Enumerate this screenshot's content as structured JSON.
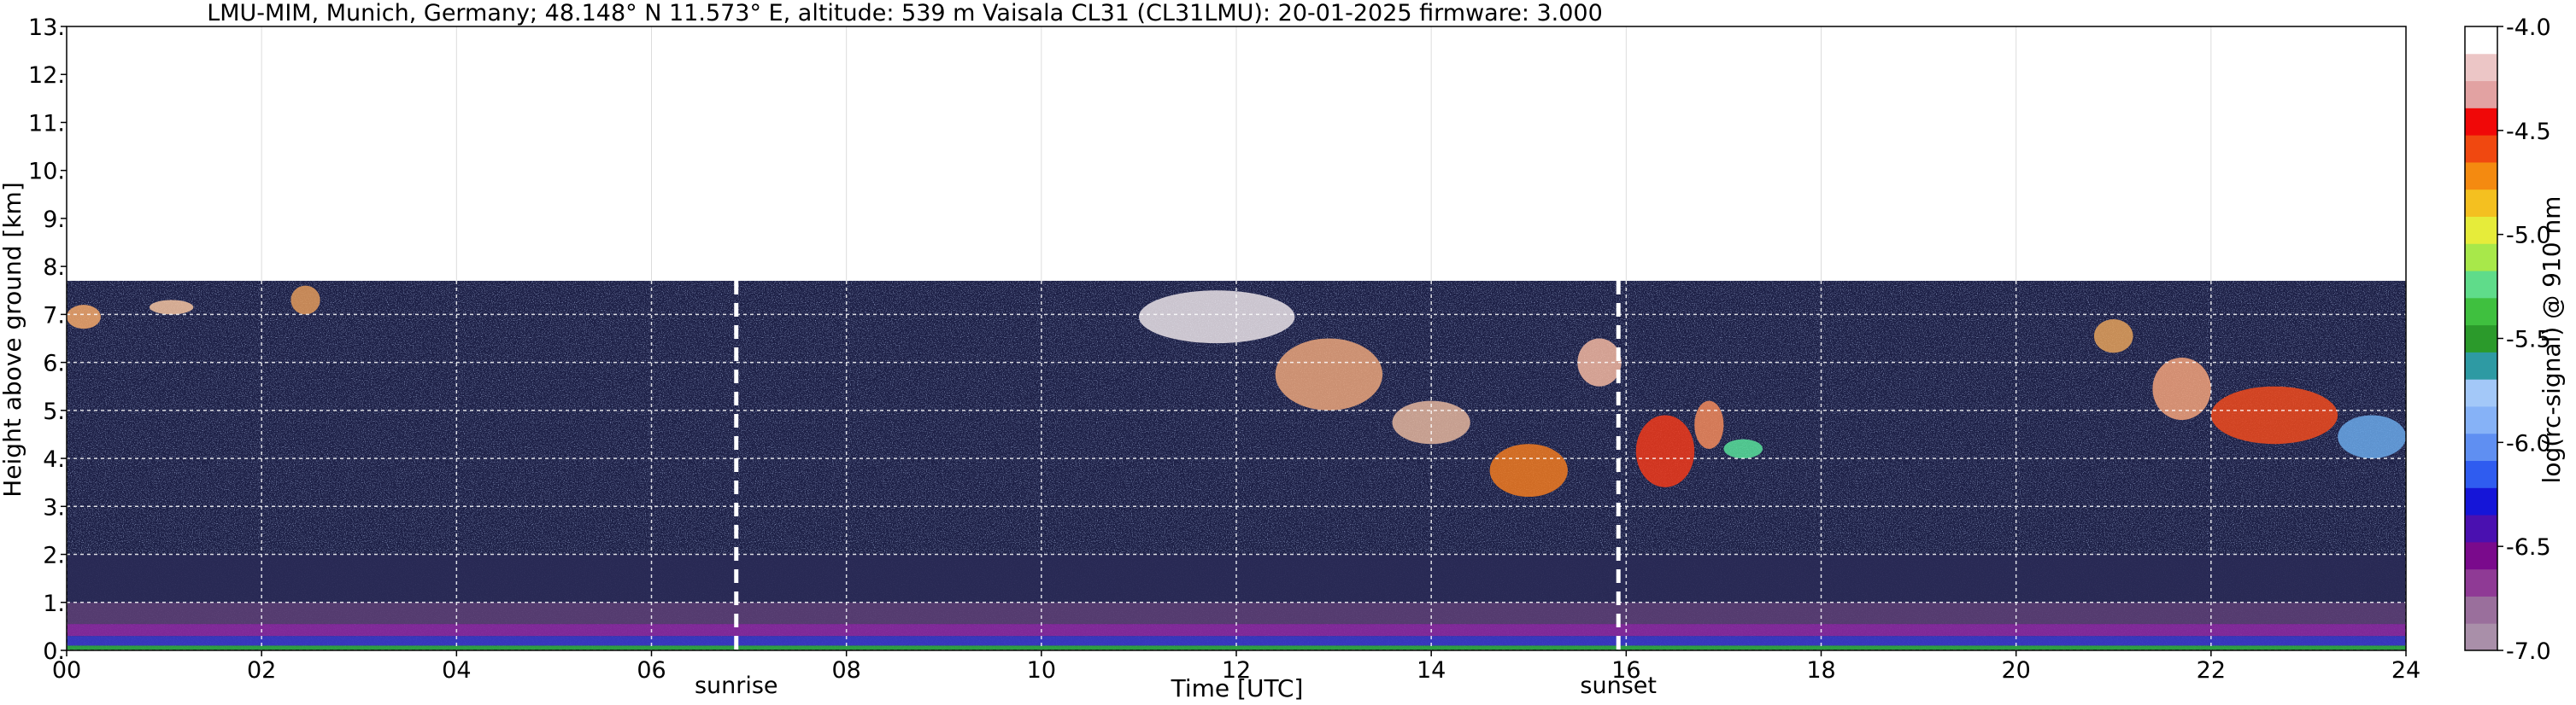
{
  "chart_data": {
    "type": "heatmap",
    "title": "LMU-MIM, Munich, Germany; 48.148° N 11.573° E, altitude: 539 m    Vaisala CL31 (CL31LMU): 20-01-2025    firmware: 3.000",
    "xlabel": "Time [UTC]",
    "ylabel": "Height above ground [km]",
    "colorbar_label": "log(rc-signal) @ 910 nm",
    "xlim": [
      0,
      24
    ],
    "ylim": [
      0,
      13
    ],
    "x_ticks": [
      0,
      2,
      4,
      6,
      8,
      10,
      12,
      14,
      16,
      18,
      20,
      22,
      24
    ],
    "x_tick_labels": [
      "00",
      "02",
      "04",
      "06",
      "08",
      "10",
      "12",
      "14",
      "16",
      "18",
      "20",
      "22",
      "24"
    ],
    "y_ticks": [
      0,
      1,
      2,
      3,
      4,
      5,
      6,
      7,
      8,
      9,
      10,
      11,
      12,
      13
    ],
    "y_tick_labels": [
      "0.",
      "1.",
      "2.",
      "3.",
      "4.",
      "5.",
      "6.",
      "7.",
      "8.",
      "9.",
      "10.",
      "11.",
      "12.",
      "13."
    ],
    "colorbar_range": [
      -7.0,
      -4.0
    ],
    "colorbar_ticks": [
      -7.0,
      -6.5,
      -6.0,
      -5.5,
      -5.0,
      -4.5,
      -4.0
    ],
    "colorbar_tick_labels": [
      "-7.0",
      "-6.5",
      "-6.0",
      "-5.5",
      "-5.0",
      "-4.5",
      "-4.0"
    ],
    "colorbar_colors": [
      "#a98fa9",
      "#9a6f9c",
      "#8f3a95",
      "#7a0a8c",
      "#4a10b0",
      "#1515d8",
      "#2f5cf0",
      "#5f8ff2",
      "#86b2f7",
      "#a3c8f8",
      "#2e9aa3",
      "#2b9a2b",
      "#3fc03f",
      "#5fdc8a",
      "#a8e84a",
      "#e6ec3a",
      "#f4c020",
      "#f48a10",
      "#f04810",
      "#f00808",
      "#e2a2a2",
      "#ecc6c6",
      "#ffffff"
    ],
    "data_top_km": 7.7,
    "data_color": "#1c1f45",
    "grid": true,
    "events": [
      {
        "label": "sunrise",
        "time_h": 6.87
      },
      {
        "label": "sunset",
        "time_h": 15.92
      }
    ],
    "cloud_layers": [
      {
        "t0": 0.0,
        "t1": 0.35,
        "h0": 6.7,
        "h1": 7.2,
        "color": "#f3a86a"
      },
      {
        "t0": 0.85,
        "t1": 1.3,
        "h0": 7.0,
        "h1": 7.3,
        "color": "#f3c3a0"
      },
      {
        "t0": 2.3,
        "t1": 2.6,
        "h0": 7.0,
        "h1": 7.6,
        "color": "#e29a5a"
      },
      {
        "t0": 11.0,
        "t1": 12.6,
        "h0": 6.4,
        "h1": 7.5,
        "color": "#e9e2e6"
      },
      {
        "t0": 12.4,
        "t1": 13.5,
        "h0": 5.0,
        "h1": 6.5,
        "color": "#eaa47a"
      },
      {
        "t0": 13.6,
        "t1": 14.4,
        "h0": 4.3,
        "h1": 5.2,
        "color": "#e3b59c"
      },
      {
        "t0": 14.6,
        "t1": 15.4,
        "h0": 3.2,
        "h1": 4.3,
        "color": "#f07a20"
      },
      {
        "t0": 15.5,
        "t1": 15.95,
        "h0": 5.5,
        "h1": 6.5,
        "color": "#f2b7a0"
      },
      {
        "t0": 16.1,
        "t1": 16.7,
        "h0": 3.4,
        "h1": 4.9,
        "color": "#f03a1a"
      },
      {
        "t0": 16.7,
        "t1": 17.0,
        "h0": 4.2,
        "h1": 5.2,
        "color": "#f28a5a"
      },
      {
        "t0": 17.0,
        "t1": 17.4,
        "h0": 4.0,
        "h1": 4.4,
        "color": "#58e09a"
      },
      {
        "t0": 20.8,
        "t1": 21.2,
        "h0": 6.2,
        "h1": 6.9,
        "color": "#e4a15a"
      },
      {
        "t0": 21.4,
        "t1": 22.0,
        "h0": 4.8,
        "h1": 6.1,
        "color": "#f2a27a"
      },
      {
        "t0": 22.0,
        "t1": 23.3,
        "h0": 4.3,
        "h1": 5.5,
        "color": "#f04a1c"
      },
      {
        "t0": 23.3,
        "t1": 24.0,
        "h0": 4.0,
        "h1": 4.9,
        "color": "#6aa8e8"
      }
    ],
    "surface_layers": [
      {
        "h0": 0.0,
        "h1": 0.1,
        "color": "#2faa40"
      },
      {
        "h0": 0.1,
        "h1": 0.3,
        "color": "#3a38c8"
      },
      {
        "h0": 0.3,
        "h1": 0.55,
        "color": "#8a2aa0"
      },
      {
        "h0": 0.55,
        "h1": 1.0,
        "color": "#5b3e73"
      },
      {
        "h0": 1.0,
        "h1": 2.0,
        "color": "#2a2a55"
      }
    ]
  }
}
